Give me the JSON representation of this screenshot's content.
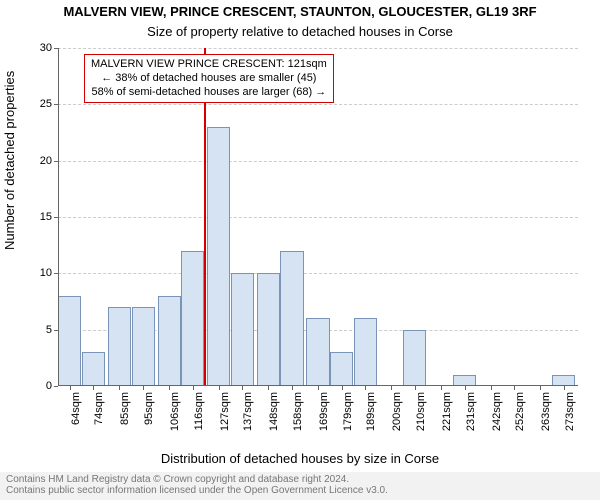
{
  "title": "MALVERN VIEW, PRINCE CRESCENT, STAUNTON, GLOUCESTER, GL19 3RF",
  "subtitle": "Size of property relative to detached houses in Corse",
  "yaxis_label": "Number of detached properties",
  "xaxis_label": "Distribution of detached houses by size in Corse",
  "footer_line1": "Contains HM Land Registry data © Crown copyright and database right 2024.",
  "footer_line2": "Contains public sector information licensed under the Open Government Licence v3.0.",
  "chart": {
    "type": "histogram",
    "background_color": "#ffffff",
    "axis_color": "#666666",
    "grid_color": "#cccccc",
    "grid_dashed": true,
    "bar_fill": "#d6e3f3",
    "bar_border": "#7a94b8",
    "bar_border_width": 1,
    "bar_relative_width": 0.98,
    "marker_color": "#d40000",
    "marker_x": 121,
    "annotation_border": "#d40000",
    "annotation_bg": "#ffffff",
    "title_fontsize": 13,
    "subtitle_fontsize": 13,
    "axis_label_fontsize": 13,
    "tick_fontsize": 11,
    "annotation_fontsize": 11,
    "footer_fontsize": 10,
    "footer_color": "#777777",
    "footer_bg": "#f2f2f2",
    "xlim": [
      59,
      279
    ],
    "ylim": [
      0,
      30
    ],
    "yticks": [
      0,
      5,
      10,
      15,
      20,
      25,
      30
    ],
    "xticks": [
      {
        "pos": 64,
        "label": "64sqm"
      },
      {
        "pos": 74,
        "label": "74sqm"
      },
      {
        "pos": 85,
        "label": "85sqm"
      },
      {
        "pos": 95,
        "label": "95sqm"
      },
      {
        "pos": 106,
        "label": "106sqm"
      },
      {
        "pos": 116,
        "label": "116sqm"
      },
      {
        "pos": 127,
        "label": "127sqm"
      },
      {
        "pos": 137,
        "label": "137sqm"
      },
      {
        "pos": 148,
        "label": "148sqm"
      },
      {
        "pos": 158,
        "label": "158sqm"
      },
      {
        "pos": 169,
        "label": "169sqm"
      },
      {
        "pos": 179,
        "label": "179sqm"
      },
      {
        "pos": 189,
        "label": "189sqm"
      },
      {
        "pos": 200,
        "label": "200sqm"
      },
      {
        "pos": 210,
        "label": "210sqm"
      },
      {
        "pos": 221,
        "label": "221sqm"
      },
      {
        "pos": 231,
        "label": "231sqm"
      },
      {
        "pos": 242,
        "label": "242sqm"
      },
      {
        "pos": 252,
        "label": "252sqm"
      },
      {
        "pos": 263,
        "label": "263sqm"
      },
      {
        "pos": 273,
        "label": "273sqm"
      }
    ],
    "bars": [
      {
        "x": 64,
        "y": 8
      },
      {
        "x": 74,
        "y": 3
      },
      {
        "x": 85,
        "y": 7
      },
      {
        "x": 95,
        "y": 7
      },
      {
        "x": 106,
        "y": 8
      },
      {
        "x": 116,
        "y": 12
      },
      {
        "x": 127,
        "y": 23
      },
      {
        "x": 137,
        "y": 10
      },
      {
        "x": 148,
        "y": 10
      },
      {
        "x": 158,
        "y": 12
      },
      {
        "x": 169,
        "y": 6
      },
      {
        "x": 179,
        "y": 3
      },
      {
        "x": 189,
        "y": 6
      },
      {
        "x": 200,
        "y": 0
      },
      {
        "x": 210,
        "y": 5
      },
      {
        "x": 221,
        "y": 0
      },
      {
        "x": 231,
        "y": 1
      },
      {
        "x": 242,
        "y": 0
      },
      {
        "x": 252,
        "y": 0
      },
      {
        "x": 263,
        "y": 0
      },
      {
        "x": 273,
        "y": 1
      }
    ]
  },
  "annotation": {
    "line1": "MALVERN VIEW PRINCE CRESCENT: 121sqm",
    "line2": "← 38% of detached houses are smaller (45)",
    "line3": "58% of semi-detached houses are larger (68) →"
  }
}
